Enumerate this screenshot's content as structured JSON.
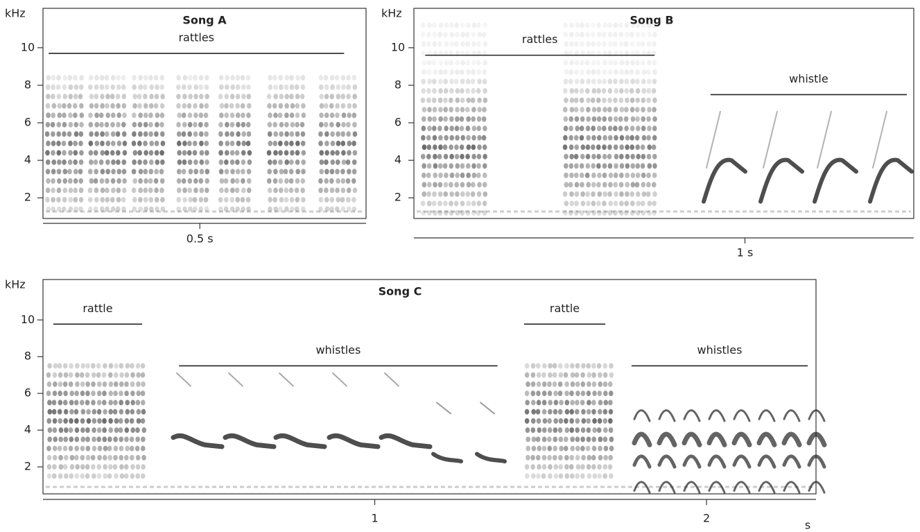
{
  "chart_data": [
    {
      "type": "spectrogram",
      "title": "Song A",
      "ylabel": "kHz",
      "ylim": [
        0.9,
        12.1
      ],
      "yticks": [
        2,
        4,
        6,
        8,
        10
      ],
      "xlim": [
        0,
        1.03
      ],
      "xticks": [
        {
          "value": 0.5,
          "label": "0.5 s"
        }
      ],
      "segments": [
        {
          "label": "rattles",
          "start": 0.018,
          "end": 0.96,
          "y": 9.7
        }
      ]
    },
    {
      "type": "spectrogram",
      "title": "Song B",
      "ylabel": "kHz",
      "ylim": [
        0.9,
        12.1
      ],
      "yticks": [
        2,
        4,
        6,
        8,
        10
      ],
      "xlim": [
        0,
        1.51
      ],
      "xticks": [
        {
          "value": 1,
          "label": "1 s"
        }
      ],
      "segments": [
        {
          "label": "rattles",
          "start": 0.034,
          "end": 0.727,
          "y": 9.6
        },
        {
          "label": "whistle",
          "start": 0.896,
          "end": 1.489,
          "y": 7.5
        }
      ]
    },
    {
      "type": "spectrogram",
      "title": "Song C",
      "ylabel": "kHz",
      "xlabel": "s",
      "ylim": [
        0.53,
        12.2
      ],
      "yticks": [
        2,
        4,
        6,
        8,
        10
      ],
      "xlim": [
        0,
        2.33
      ],
      "xticks": [
        1,
        2
      ],
      "segments": [
        {
          "label": "rattle",
          "start": 0.031,
          "end": 0.299,
          "y": 9.77
        },
        {
          "label": "whistles",
          "start": 0.41,
          "end": 1.37,
          "y": 7.5
        },
        {
          "label": "rattle",
          "start": 1.45,
          "end": 1.695,
          "y": 9.77
        },
        {
          "label": "whistles",
          "start": 1.774,
          "end": 2.305,
          "y": 7.5
        }
      ]
    }
  ]
}
